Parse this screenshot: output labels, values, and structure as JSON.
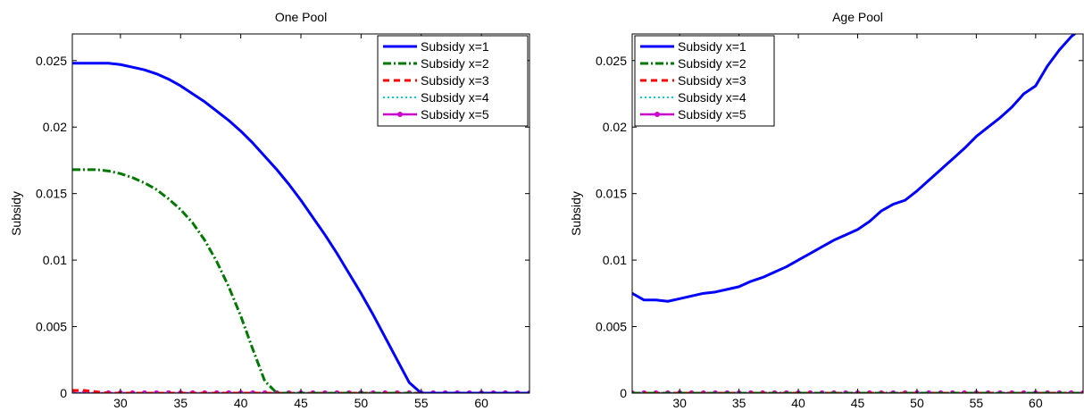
{
  "chart_data": [
    {
      "type": "line",
      "title": "One Pool",
      "xlabel": "",
      "ylabel": "Subsidy",
      "xlim": [
        26,
        64
      ],
      "ylim": [
        0,
        0.027
      ],
      "xticks": [
        30,
        35,
        40,
        45,
        50,
        55,
        60
      ],
      "yticks": [
        0,
        0.005,
        0.01,
        0.015,
        0.02,
        0.025
      ],
      "ytick_labels": [
        "0",
        "0.005",
        "0.01",
        "0.015",
        "0.02",
        "0.025"
      ],
      "grid": false,
      "legend_position": "top-right",
      "series": [
        {
          "name": "Subsidy x=1",
          "color": "#0000ff",
          "style": "solid",
          "x": [
            26,
            27,
            28,
            29,
            30,
            31,
            32,
            33,
            34,
            35,
            36,
            37,
            38,
            39,
            40,
            41,
            42,
            43,
            44,
            45,
            46,
            47,
            48,
            49,
            50,
            51,
            52,
            53,
            54,
            55,
            56,
            57,
            58,
            59,
            60,
            61,
            62,
            63,
            64
          ],
          "y": [
            0.0248,
            0.0248,
            0.0248,
            0.0248,
            0.0247,
            0.0245,
            0.0243,
            0.024,
            0.0236,
            0.0231,
            0.0225,
            0.0219,
            0.0212,
            0.0205,
            0.0197,
            0.0188,
            0.0178,
            0.0168,
            0.0157,
            0.0145,
            0.0132,
            0.0119,
            0.0105,
            0.009,
            0.0075,
            0.0059,
            0.0042,
            0.0025,
            0.0008,
            0,
            0,
            0,
            0,
            0,
            0,
            0,
            0,
            0,
            0
          ]
        },
        {
          "name": "Subsidy x=2",
          "color": "#007700",
          "style": "dashdot",
          "x": [
            26,
            27,
            28,
            29,
            30,
            31,
            32,
            33,
            34,
            35,
            36,
            37,
            38,
            39,
            40,
            41,
            42,
            43,
            44,
            45,
            46,
            47,
            48,
            49,
            50,
            51,
            52,
            53,
            54,
            55,
            56,
            57,
            58,
            59,
            60,
            61,
            62,
            63,
            64
          ],
          "y": [
            0.0168,
            0.0168,
            0.0168,
            0.0167,
            0.0165,
            0.0162,
            0.0158,
            0.0153,
            0.0146,
            0.0138,
            0.0128,
            0.0115,
            0.0099,
            0.008,
            0.0058,
            0.0033,
            0.0009,
            0,
            0,
            0,
            0,
            0,
            0,
            0,
            0,
            0,
            0,
            0,
            0,
            0,
            0,
            0,
            0,
            0,
            0,
            0,
            0,
            0,
            0
          ]
        },
        {
          "name": "Subsidy x=3",
          "color": "#ff0000",
          "style": "dashed",
          "x": [
            26,
            27,
            28,
            29,
            30,
            31,
            32,
            33,
            34,
            35,
            36,
            37,
            38,
            39,
            40,
            41,
            42,
            43,
            44,
            45,
            46,
            47,
            48,
            49,
            50,
            51,
            52,
            53,
            54,
            55,
            56,
            57,
            58,
            59,
            60,
            61,
            62,
            63,
            64
          ],
          "y": [
            0.0002,
            0.0002,
            0.0001,
            0,
            0,
            0,
            0,
            0,
            0,
            0,
            0,
            0,
            0,
            0,
            0,
            0,
            0,
            0,
            0,
            0,
            0,
            0,
            0,
            0,
            0,
            0,
            0,
            0,
            0,
            0,
            0,
            0,
            0,
            0,
            0,
            0,
            0,
            0,
            0
          ]
        },
        {
          "name": "Subsidy x=4",
          "color": "#00cccc",
          "style": "dotted",
          "x": [
            26,
            27,
            28,
            29,
            30,
            31,
            32,
            33,
            34,
            35,
            36,
            37,
            38,
            39,
            40,
            41,
            42,
            43,
            44,
            45,
            46,
            47,
            48,
            49,
            50,
            51,
            52,
            53,
            54,
            55,
            56,
            57,
            58,
            59,
            60,
            61,
            62,
            63,
            64
          ],
          "y": [
            0,
            0,
            0,
            0,
            0,
            0,
            0,
            0,
            0,
            0,
            0,
            0,
            0,
            0,
            0,
            0,
            0,
            0,
            0,
            0,
            0,
            0,
            0,
            0,
            0,
            0,
            0,
            0,
            0,
            0,
            0,
            0,
            0,
            0,
            0,
            0,
            0,
            0,
            0
          ]
        },
        {
          "name": "Subsidy x=5",
          "color": "#cc00cc",
          "style": "solid-marker",
          "x": [
            26,
            27,
            28,
            29,
            30,
            31,
            32,
            33,
            34,
            35,
            36,
            37,
            38,
            39,
            40,
            41,
            42,
            43,
            44,
            45,
            46,
            47,
            48,
            49,
            50,
            51,
            52,
            53,
            54,
            55,
            56,
            57,
            58,
            59,
            60,
            61,
            62,
            63,
            64
          ],
          "y": [
            0,
            0,
            0,
            0,
            0,
            0,
            0,
            0,
            0,
            0,
            0,
            0,
            0,
            0,
            0,
            0,
            0,
            0,
            0,
            0,
            0,
            0,
            0,
            0,
            0,
            0,
            0,
            0,
            0,
            0,
            0,
            0,
            0,
            0,
            0,
            0,
            0,
            0,
            0
          ]
        }
      ]
    },
    {
      "type": "line",
      "title": "Age Pool",
      "xlabel": "",
      "ylabel": "Subsidy",
      "xlim": [
        26,
        64
      ],
      "ylim": [
        0,
        0.027
      ],
      "xticks": [
        30,
        35,
        40,
        45,
        50,
        55,
        60
      ],
      "yticks": [
        0,
        0.005,
        0.01,
        0.015,
        0.02,
        0.025
      ],
      "ytick_labels": [
        "0",
        "0.005",
        "0.01",
        "0.015",
        "0.02",
        "0.025"
      ],
      "grid": false,
      "legend_position": "top-left",
      "series": [
        {
          "name": "Subsidy x=1",
          "color": "#0000ff",
          "style": "solid",
          "x": [
            26,
            27,
            28,
            29,
            30,
            31,
            32,
            33,
            34,
            35,
            36,
            37,
            38,
            39,
            40,
            41,
            42,
            43,
            44,
            45,
            46,
            47,
            48,
            49,
            50,
            51,
            52,
            53,
            54,
            55,
            56,
            57,
            58,
            59,
            60,
            61,
            62,
            63,
            64
          ],
          "y": [
            0.0075,
            0.007,
            0.007,
            0.0069,
            0.0071,
            0.0073,
            0.0075,
            0.0076,
            0.0078,
            0.008,
            0.0084,
            0.0087,
            0.0091,
            0.0095,
            0.01,
            0.0105,
            0.011,
            0.0115,
            0.0119,
            0.0123,
            0.0129,
            0.0137,
            0.0142,
            0.0145,
            0.0152,
            0.016,
            0.0168,
            0.0176,
            0.0184,
            0.0193,
            0.02,
            0.0207,
            0.0215,
            0.0225,
            0.0231,
            0.0246,
            0.0258,
            0.0268,
            0.0275
          ]
        },
        {
          "name": "Subsidy x=2",
          "color": "#007700",
          "style": "dashdot",
          "x": [
            26,
            27,
            28,
            29,
            30,
            31,
            32,
            33,
            34,
            35,
            36,
            37,
            38,
            39,
            40,
            41,
            42,
            43,
            44,
            45,
            46,
            47,
            48,
            49,
            50,
            51,
            52,
            53,
            54,
            55,
            56,
            57,
            58,
            59,
            60,
            61,
            62,
            63,
            64
          ],
          "y": [
            0,
            0,
            0,
            0,
            0,
            0,
            0,
            0,
            0,
            0,
            0,
            0,
            0,
            0,
            0,
            0,
            0,
            0,
            0,
            0,
            0,
            0,
            0,
            0,
            0,
            0,
            0,
            0,
            0,
            0,
            0,
            0,
            0,
            0,
            0,
            0,
            0,
            0,
            0
          ]
        },
        {
          "name": "Subsidy x=3",
          "color": "#ff0000",
          "style": "dashed",
          "x": [
            26,
            27,
            28,
            29,
            30,
            31,
            32,
            33,
            34,
            35,
            36,
            37,
            38,
            39,
            40,
            41,
            42,
            43,
            44,
            45,
            46,
            47,
            48,
            49,
            50,
            51,
            52,
            53,
            54,
            55,
            56,
            57,
            58,
            59,
            60,
            61,
            62,
            63,
            64
          ],
          "y": [
            0,
            0,
            0,
            0,
            0,
            0,
            0,
            0,
            0,
            0,
            0,
            0,
            0,
            0,
            0,
            0,
            0,
            0,
            0,
            0,
            0,
            0,
            0,
            0,
            0,
            0,
            0,
            0,
            0,
            0,
            0,
            0,
            0,
            0,
            0,
            0,
            0,
            0,
            0
          ]
        },
        {
          "name": "Subsidy x=4",
          "color": "#00cccc",
          "style": "dotted",
          "x": [
            26,
            27,
            28,
            29,
            30,
            31,
            32,
            33,
            34,
            35,
            36,
            37,
            38,
            39,
            40,
            41,
            42,
            43,
            44,
            45,
            46,
            47,
            48,
            49,
            50,
            51,
            52,
            53,
            54,
            55,
            56,
            57,
            58,
            59,
            60,
            61,
            62,
            63,
            64
          ],
          "y": [
            0,
            0,
            0,
            0,
            0,
            0,
            0,
            0,
            0,
            0,
            0,
            0,
            0,
            0,
            0,
            0,
            0,
            0,
            0,
            0,
            0,
            0,
            0,
            0,
            0,
            0,
            0,
            0,
            0,
            0,
            0,
            0,
            0,
            0,
            0,
            0,
            0,
            0,
            0
          ]
        },
        {
          "name": "Subsidy x=5",
          "color": "#cc00cc",
          "style": "solid-marker",
          "x": [
            26,
            27,
            28,
            29,
            30,
            31,
            32,
            33,
            34,
            35,
            36,
            37,
            38,
            39,
            40,
            41,
            42,
            43,
            44,
            45,
            46,
            47,
            48,
            49,
            50,
            51,
            52,
            53,
            54,
            55,
            56,
            57,
            58,
            59,
            60,
            61,
            62,
            63,
            64
          ],
          "y": [
            0,
            0,
            0,
            0,
            0,
            0,
            0,
            0,
            0,
            0,
            0,
            0,
            0,
            0,
            0,
            0,
            0,
            0,
            0,
            0,
            0,
            0,
            0,
            0,
            0,
            0,
            0,
            0,
            0,
            0,
            0,
            0,
            0,
            0,
            0,
            0,
            0,
            0,
            0
          ]
        }
      ]
    }
  ]
}
